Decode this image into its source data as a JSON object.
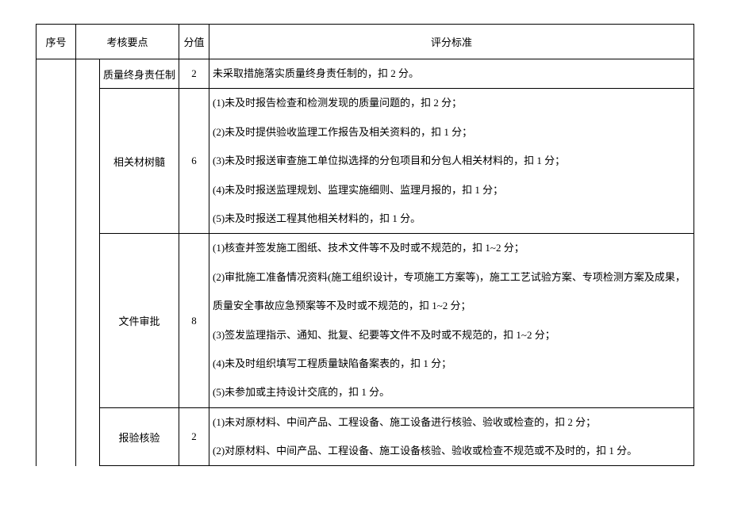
{
  "headers": {
    "num": "序号",
    "point": "考核要点",
    "score": "分值",
    "criteria": "评分标准"
  },
  "rows": [
    {
      "point": "质量终身责任制",
      "score": "2",
      "criteria": [
        "未采取措施落实质量终身责任制的，扣 2 分。"
      ]
    },
    {
      "point": "相关材树髓",
      "score": "6",
      "criteria": [
        "(1)未及时报告检查和检测发现的质量问题的，扣 2 分；",
        "(2)未及时提供验收监理工作报告及相关资料的，扣 1 分；",
        "(3)未及时报送审查施工单位拟选择的分包项目和分包人相关材料的，扣 1 分；",
        "(4)未及时报送监理规划、监理实施细则、监理月报的，扣 1 分；",
        "(5)未及时报送工程其他相关材料的，扣 1 分。"
      ]
    },
    {
      "point": "文件审批",
      "score": "8",
      "criteria": [
        "(1)核查并签发施工图纸、技术文件等不及时或不规范的，扣 1~2 分；",
        "(2)审批施工准备情况资料(施工组织设计，专项施工方案等)，施工工艺试验方案、专项检测方案及成果，",
        "质量安全事故应急预案等不及时或不规范的，扣 1~2 分；",
        "(3)签发监理指示、通知、批复、纪要等文件不及时或不规范的，扣 1~2 分；",
        "(4)未及时组织填写工程质量缺陷备案表的，扣 1 分；",
        "(5)未参加或主持设计交底的，扣 1 分。"
      ]
    },
    {
      "point": "报验核验",
      "score": "2",
      "criteria": [
        "(1)未对原材料、中间产品、工程设备、施工设备进行核验、验收或检查的，扣 2 分；",
        "(2)对原材料、中间产品、工程设备、施工设备核验、验收或检查不规范或不及时的，扣 1 分。"
      ]
    }
  ]
}
